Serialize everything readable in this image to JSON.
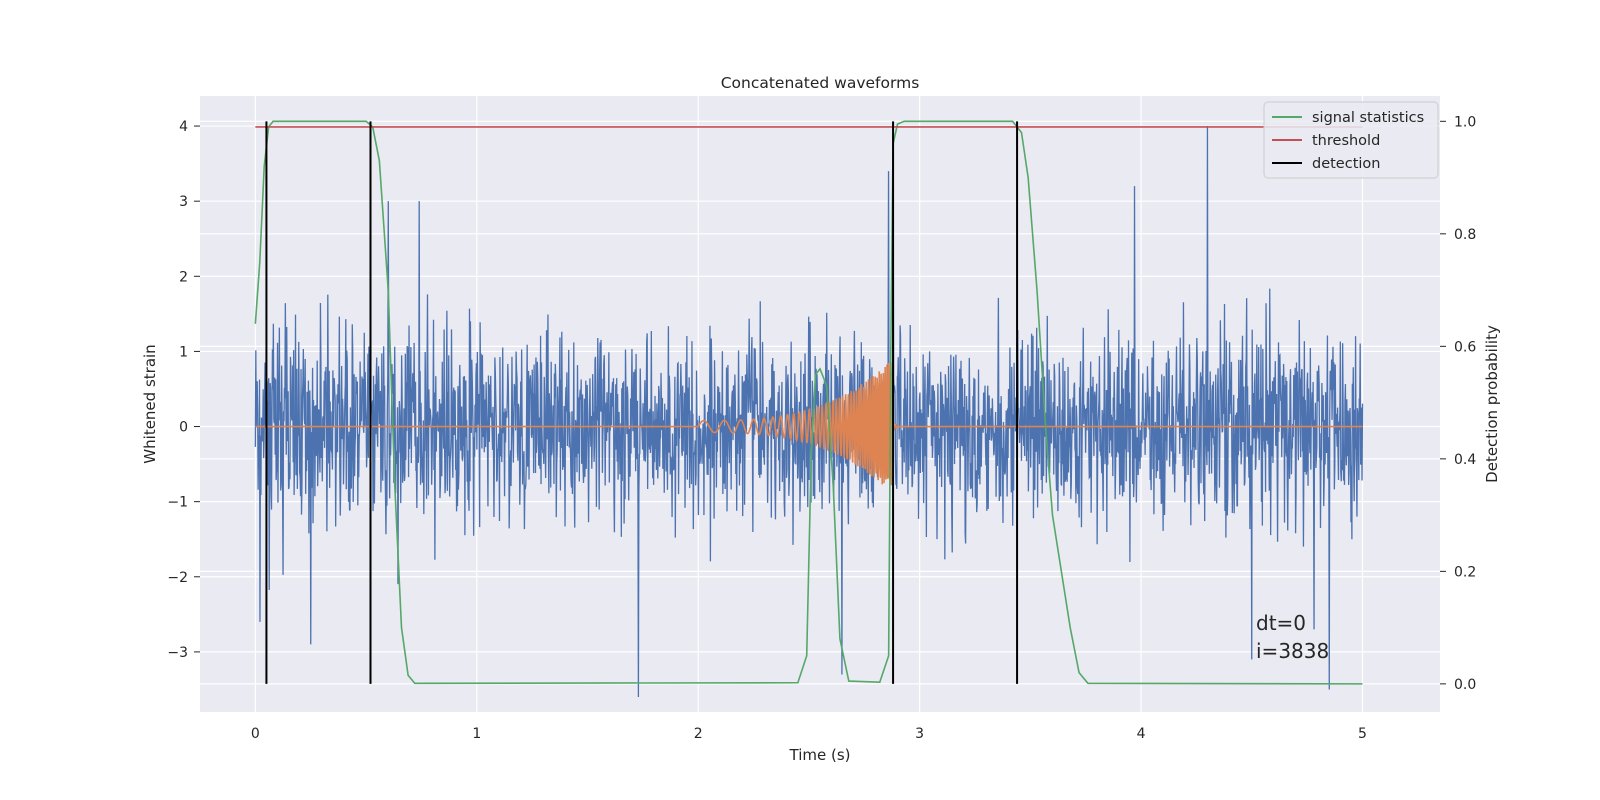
{
  "chart_data": {
    "type": "line",
    "title": "Concatenated waveforms",
    "xlabel": "Time (s)",
    "ylabel": "Whitened strain",
    "y2label": "Detection probability",
    "xlim": [
      -0.25,
      5.35
    ],
    "ylim": [
      -3.8,
      4.4
    ],
    "y2lim": [
      -0.05,
      1.045
    ],
    "x_ticks": [
      0,
      1,
      2,
      3,
      4,
      5
    ],
    "y_ticks": [
      -3,
      -2,
      -1,
      0,
      1,
      2,
      3,
      4
    ],
    "y2_ticks": [
      0.0,
      0.2,
      0.4,
      0.6,
      0.8,
      1.0
    ],
    "tick_labels": {
      "x": [
        "0",
        "1",
        "2",
        "3",
        "4",
        "5"
      ],
      "y": [
        "−3",
        "−2",
        "−1",
        "0",
        "1",
        "2",
        "3",
        "4"
      ],
      "y2": [
        "0.0",
        "0.2",
        "0.4",
        "0.6",
        "0.8",
        "1.0"
      ]
    },
    "grid": true,
    "legend_placement": "upper-right",
    "series": [
      {
        "key": "strain",
        "axis": "left",
        "color": "#4c72b0",
        "x_range": [
          0,
          5
        ],
        "noise_envelope": 1.6,
        "peaks": [
          {
            "x": 4.3,
            "y": 4.0
          },
          {
            "x": 2.86,
            "y": 3.4
          },
          {
            "x": 2.88,
            "y": 3.3
          },
          {
            "x": 1.73,
            "y": -3.6
          },
          {
            "x": 4.85,
            "y": -3.5
          },
          {
            "x": 0.02,
            "y": -2.6
          },
          {
            "x": 0.25,
            "y": -2.9
          },
          {
            "x": 2.65,
            "y": -3.3
          },
          {
            "x": 4.5,
            "y": -3.1
          },
          {
            "x": 0.74,
            "y": 3.0
          },
          {
            "x": 3.97,
            "y": 3.2
          },
          {
            "x": 0.6,
            "y": 3.0
          }
        ]
      },
      {
        "key": "waveform",
        "axis": "left",
        "color": "#dd8452",
        "x_range": [
          0,
          5
        ],
        "chirp_start": 2.0,
        "merger": 2.88,
        "amp_start": 0.08,
        "amp_peak": 0.9
      },
      {
        "name": "signal statistics",
        "axis": "right",
        "color": "#55a868",
        "points": [
          [
            0.0,
            0.64
          ],
          [
            0.02,
            0.75
          ],
          [
            0.04,
            0.92
          ],
          [
            0.06,
            0.99
          ],
          [
            0.08,
            1.0
          ],
          [
            0.5,
            1.0
          ],
          [
            0.53,
            0.99
          ],
          [
            0.56,
            0.93
          ],
          [
            0.6,
            0.7
          ],
          [
            0.63,
            0.35
          ],
          [
            0.66,
            0.1
          ],
          [
            0.69,
            0.015
          ],
          [
            0.72,
            0.001
          ],
          [
            2.45,
            0.002
          ],
          [
            2.49,
            0.05
          ],
          [
            2.51,
            0.4
          ],
          [
            2.53,
            0.55
          ],
          [
            2.55,
            0.56
          ],
          [
            2.58,
            0.53
          ],
          [
            2.61,
            0.35
          ],
          [
            2.64,
            0.08
          ],
          [
            2.68,
            0.005
          ],
          [
            2.82,
            0.003
          ],
          [
            2.86,
            0.05
          ],
          [
            2.87,
            0.6
          ],
          [
            2.88,
            0.96
          ],
          [
            2.9,
            0.995
          ],
          [
            2.93,
            1.0
          ],
          [
            3.42,
            1.0
          ],
          [
            3.46,
            0.98
          ],
          [
            3.49,
            0.9
          ],
          [
            3.53,
            0.7
          ],
          [
            3.57,
            0.45
          ],
          [
            3.6,
            0.3
          ],
          [
            3.64,
            0.2
          ],
          [
            3.68,
            0.1
          ],
          [
            3.72,
            0.02
          ],
          [
            3.76,
            0.001
          ],
          [
            5.0,
            0.0
          ]
        ]
      },
      {
        "name": "threshold",
        "axis": "right",
        "color": "#c44e52",
        "x": [
          0,
          5
        ],
        "y": [
          0.99,
          0.99
        ]
      },
      {
        "name": "detection",
        "axis": "right",
        "color": "#000000",
        "vlines": [
          0.05,
          0.52,
          2.88,
          3.44
        ],
        "ymin": 0.0,
        "ymax": 1.0
      }
    ],
    "annotations": [
      "dt=0",
      "i=3838"
    ]
  }
}
